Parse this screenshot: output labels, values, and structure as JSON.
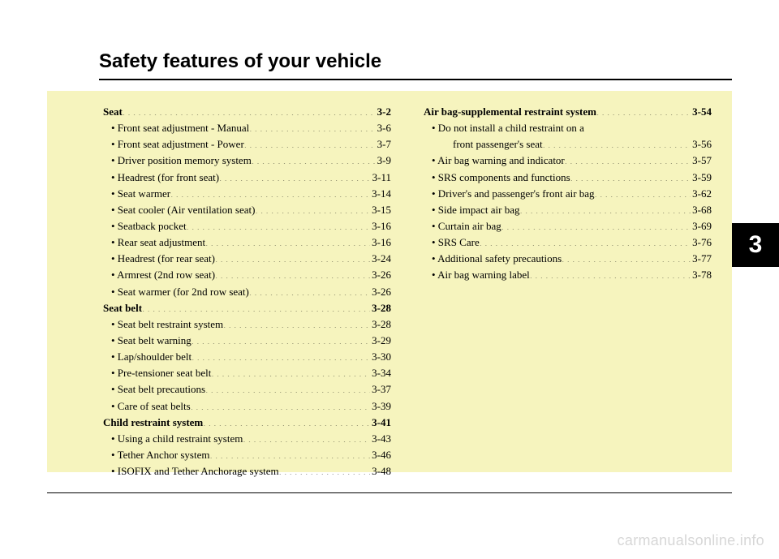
{
  "title": "Safety features of your vehicle",
  "chapter_number": "3",
  "watermark": "carmanualsonline.info",
  "colors": {
    "page_bg": "#ffffff",
    "content_bg": "#f6f4be",
    "tab_bg": "#000000",
    "tab_fg": "#ffffff",
    "text": "#000000",
    "watermark": "#d7d7d7"
  },
  "typography": {
    "title_fontsize": 24,
    "body_fontsize": 13,
    "tab_fontsize": 30
  },
  "toc": {
    "left": [
      {
        "label": "Seat",
        "page": "3-2",
        "level": "section"
      },
      {
        "label": "• Front seat adjustment - Manual ",
        "page": "3-6",
        "level": "sub"
      },
      {
        "label": "• Front seat adjustment - Power",
        "page": "3-7",
        "level": "sub"
      },
      {
        "label": "• Driver position memory system  ",
        "page": "3-9",
        "level": "sub"
      },
      {
        "label": "• Headrest (for front seat) ",
        "page": "3-11",
        "level": "sub"
      },
      {
        "label": "• Seat warmer",
        "page": "3-14",
        "level": "sub"
      },
      {
        "label": "• Seat cooler (Air ventilation seat) ",
        "page": "3-15",
        "level": "sub"
      },
      {
        "label": "• Seatback pocket",
        "page": "3-16",
        "level": "sub"
      },
      {
        "label": "• Rear seat adjustment ",
        "page": "3-16",
        "level": "sub"
      },
      {
        "label": "• Headrest (for rear seat)",
        "page": "3-24",
        "level": "sub"
      },
      {
        "label": "• Armrest (2nd row seat) ",
        "page": "3-26",
        "level": "sub"
      },
      {
        "label": "• Seat warmer (for 2nd row seat) ",
        "page": "3-26",
        "level": "sub"
      },
      {
        "label": "Seat belt ",
        "page": "3-28",
        "level": "section"
      },
      {
        "label": "• Seat belt restraint system ",
        "page": "3-28",
        "level": "sub"
      },
      {
        "label": "• Seat belt warning",
        "page": "3-29",
        "level": "sub"
      },
      {
        "label": "• Lap/shoulder belt",
        "page": "3-30",
        "level": "sub"
      },
      {
        "label": "• Pre-tensioner seat belt",
        "page": "3-34",
        "level": "sub"
      },
      {
        "label": "• Seat belt precautions ",
        "page": "3-37",
        "level": "sub"
      },
      {
        "label": "• Care of seat belts  ",
        "page": "3-39",
        "level": "sub"
      },
      {
        "label": "Child restraint system ",
        "page": "3-41",
        "level": "section"
      },
      {
        "label": "• Using a child restraint system ",
        "page": "3-43",
        "level": "sub"
      },
      {
        "label": "• Tether Anchor system ",
        "page": "3-46",
        "level": "sub"
      },
      {
        "label": "• ISOFIX and Tether Anchorage system ",
        "page": "3-48",
        "level": "sub"
      }
    ],
    "right": [
      {
        "label": "Air bag-supplemental restraint system ",
        "page": "3-54",
        "level": "section"
      },
      {
        "label": "• Do not install a child restraint on a",
        "page": "",
        "level": "sub-nopage"
      },
      {
        "label": "front passenger's seat",
        "page": "3-56",
        "level": "subsub"
      },
      {
        "label": "• Air bag warning and indicator",
        "page": "3-57",
        "level": "sub"
      },
      {
        "label": "• SRS components and functions ",
        "page": "3-59",
        "level": "sub"
      },
      {
        "label": "• Driver's and passenger's front air bag ",
        "page": "3-62",
        "level": "sub"
      },
      {
        "label": "• Side impact air bag ",
        "page": "3-68",
        "level": "sub"
      },
      {
        "label": "• Curtain air bag ",
        "page": "3-69",
        "level": "sub"
      },
      {
        "label": "• SRS Care ",
        "page": "3-76",
        "level": "sub"
      },
      {
        "label": "• Additional safety precautions",
        "page": "3-77",
        "level": "sub"
      },
      {
        "label": "• Air bag warning label ",
        "page": "3-78",
        "level": "sub"
      }
    ]
  }
}
